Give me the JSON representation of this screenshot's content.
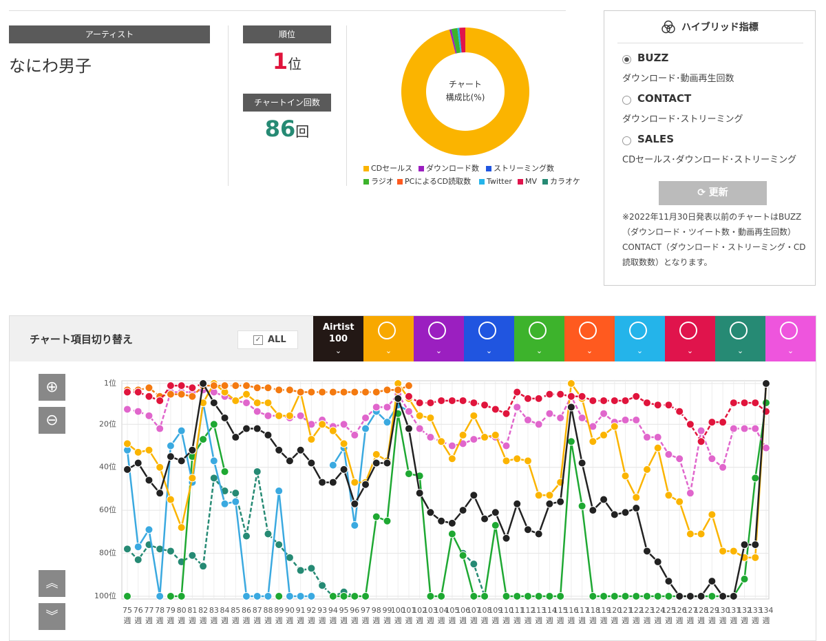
{
  "artist": {
    "header": "アーティスト",
    "name": "なにわ男子"
  },
  "rank": {
    "header": "順位",
    "value": 1,
    "unit": "位"
  },
  "chart_in": {
    "header": "チャートイン回数",
    "value": 86,
    "unit": "回"
  },
  "hybrid": {
    "title": "ハイブリッド指標",
    "options": [
      {
        "name": "BUZZ",
        "description": "ダウンロード･動画再生回数",
        "selected": true
      },
      {
        "name": "CONTACT",
        "description": "ダウンロード･ストリーミング",
        "selected": false
      },
      {
        "name": "SALES",
        "description": "CDセールス･ダウンロード･ストリーミング",
        "selected": false
      }
    ],
    "button": "更新",
    "note": "※2022年11月30日発表以前のチャートはBUZZ（ダウンロード・ツイート数・動画再生回数）CONTACT（ダウンロード・ストリーミング・CD読取数数）となります。"
  },
  "toolbar": {
    "title": "チャート項目切り替え",
    "all": "ALL",
    "all_checked": true,
    "tabs": [
      {
        "label": "Airtist 100",
        "color": "#231815"
      },
      {
        "color": "#f8a800"
      },
      {
        "color": "#9b1fc0"
      },
      {
        "color": "#2055e0"
      },
      {
        "color": "#3db32c"
      },
      {
        "color": "#ff5a1f"
      },
      {
        "color": "#24b4ea"
      },
      {
        "color": "#e0144c"
      },
      {
        "color": "#268a74"
      },
      {
        "color": "#ee55dd"
      }
    ]
  },
  "chart_data": [
    {
      "type": "pie",
      "center_label": [
        "チャート",
        "構成比(%)"
      ],
      "categories": [
        "CDセールス",
        "ダウンロード数",
        "ストリーミング数",
        "ラジオ",
        "PCによるCD読取数",
        "Twitter",
        "MV",
        "カラオケ"
      ],
      "values": [
        96,
        0.5,
        0,
        1.5,
        0,
        0.5,
        1.5,
        0
      ],
      "colors": [
        "#fbb400",
        "#9b1fc0",
        "#2055e0",
        "#3db32c",
        "#ff5a1f",
        "#24b4ea",
        "#e0144c",
        "#268a74"
      ]
    },
    {
      "type": "line",
      "x_unit": "週",
      "inverted_y": true,
      "grid": true,
      "categories": [
        "75",
        "76",
        "77",
        "78",
        "79",
        "80",
        "81",
        "82",
        "83",
        "84",
        "85",
        "86",
        "87",
        "88",
        "89",
        "90",
        "91",
        "92",
        "93",
        "94",
        "95",
        "96",
        "97",
        "98",
        "99",
        "100",
        "101",
        "102",
        "103",
        "104",
        "105",
        "106",
        "107",
        "108",
        "109",
        "110",
        "111",
        "112",
        "113",
        "114",
        "115",
        "116",
        "117",
        "118",
        "119",
        "120",
        "121",
        "122",
        "123",
        "124",
        "125",
        "126",
        "127",
        "128",
        "129",
        "130",
        "131",
        "132",
        "133",
        "134"
      ],
      "ylim": [
        1,
        100
      ],
      "yticks": [
        {
          "value": 1,
          "label": "1位"
        },
        {
          "value": 20,
          "label": "20位"
        },
        {
          "value": 40,
          "label": "40位"
        },
        {
          "value": 60,
          "label": "60位"
        },
        {
          "value": 80,
          "label": "80位"
        },
        {
          "value": 100,
          "label": "100位"
        }
      ],
      "series": [
        {
          "color": "#268a74",
          "dashed": true,
          "values": [
            78,
            83,
            76,
            78,
            79,
            84,
            81,
            86,
            45,
            51,
            52,
            72,
            42,
            71,
            76,
            82,
            88,
            87,
            95,
            100,
            98,
            100,
            null,
            null,
            null,
            null,
            null,
            null,
            null,
            null,
            null,
            80,
            85,
            100,
            null,
            null,
            null,
            null,
            null,
            null,
            null,
            null,
            null,
            null,
            null,
            null,
            null,
            null,
            null,
            null,
            null,
            null,
            null,
            null,
            null,
            null,
            null,
            null,
            null,
            null
          ]
        },
        {
          "color": "#1ea832",
          "dashed": false,
          "values": [
            100,
            null,
            null,
            null,
            100,
            100,
            35,
            27,
            20,
            42,
            null,
            null,
            null,
            null,
            100,
            null,
            null,
            null,
            null,
            100,
            100,
            100,
            100,
            63,
            65,
            15,
            43,
            44,
            100,
            100,
            71,
            81,
            100,
            100,
            67,
            100,
            100,
            100,
            100,
            100,
            100,
            28,
            58,
            100,
            100,
            100,
            100,
            100,
            100,
            100,
            100,
            100,
            100,
            100,
            100,
            100,
            100,
            92,
            45,
            10
          ]
        },
        {
          "color": "#3aa9e0",
          "dashed": false,
          "values": [
            32,
            77,
            69,
            100,
            30,
            23,
            47,
            10,
            37,
            57,
            56,
            100,
            100,
            100,
            51,
            100,
            100,
            100,
            null,
            39,
            31,
            67,
            22,
            14,
            19,
            11,
            14,
            null,
            null,
            null,
            null,
            null,
            null,
            null,
            null,
            null,
            null,
            null,
            null,
            null,
            null,
            null,
            null,
            null,
            null,
            null,
            null,
            null,
            null,
            null,
            null,
            null,
            null,
            null,
            null,
            null,
            null,
            null,
            null,
            null
          ]
        },
        {
          "color": "#e066cc",
          "dashed": true,
          "values": [
            13,
            14,
            16,
            22,
            5,
            5,
            5,
            4,
            5,
            7,
            9,
            10,
            14,
            16,
            16,
            17,
            16,
            20,
            18,
            21,
            20,
            25,
            17,
            12,
            12,
            6,
            14,
            22,
            26,
            28,
            30,
            29,
            27,
            26,
            26,
            30,
            12,
            18,
            20,
            15,
            17,
            7,
            17,
            21,
            15,
            19,
            18,
            18,
            26,
            26,
            34,
            36,
            52,
            23,
            36,
            40,
            22,
            22,
            22,
            31
          ]
        },
        {
          "color": "#fbb400",
          "dashed": false,
          "values": [
            29,
            33,
            32,
            40,
            55,
            68,
            45,
            10,
            1,
            5,
            9,
            6,
            10,
            10,
            16,
            16,
            5,
            27,
            20,
            23,
            29,
            47,
            47,
            34,
            37,
            1,
            8,
            16,
            17,
            28,
            36,
            25,
            16,
            26,
            25,
            37,
            36,
            37,
            53,
            53,
            47,
            1,
            8,
            28,
            25,
            21,
            44,
            54,
            41,
            31,
            53,
            56,
            71,
            71,
            62,
            79,
            79,
            82,
            82,
            1
          ]
        },
        {
          "color": "#f47a10",
          "dashed": true,
          "values": [
            4,
            4,
            3,
            7,
            6,
            6,
            7,
            2,
            2,
            2,
            2,
            2,
            3,
            3,
            4,
            4,
            5,
            5,
            5,
            5,
            5,
            5,
            5,
            5,
            4,
            4,
            2,
            null,
            null,
            null,
            null,
            null,
            null,
            null,
            null,
            null,
            null,
            null,
            null,
            null,
            null,
            null,
            null,
            null,
            null,
            null,
            null,
            null,
            null,
            null,
            null,
            null,
            null,
            null,
            null,
            null,
            null,
            null,
            null,
            null
          ]
        },
        {
          "color": "#e0143c",
          "dashed": true,
          "values": [
            5,
            5,
            7,
            9,
            2,
            2,
            3,
            1,
            null,
            null,
            null,
            null,
            null,
            null,
            null,
            null,
            null,
            null,
            null,
            null,
            null,
            null,
            null,
            null,
            null,
            null,
            7,
            10,
            10,
            9,
            9,
            9,
            10,
            11,
            13,
            15,
            5,
            8,
            8,
            6,
            6,
            7,
            7,
            9,
            9,
            9,
            9,
            7,
            10,
            11,
            11,
            14,
            20,
            28,
            19,
            19,
            10,
            10,
            10,
            14
          ]
        },
        {
          "color": "#222222",
          "dashed": false,
          "values": [
            41,
            38,
            46,
            52,
            35,
            37,
            32,
            1,
            10,
            17,
            26,
            22,
            22,
            25,
            32,
            37,
            32,
            38,
            47,
            47,
            41,
            57,
            48,
            38,
            38,
            8,
            22,
            52,
            61,
            65,
            66,
            60,
            53,
            64,
            61,
            73,
            57,
            69,
            71,
            57,
            56,
            12,
            38,
            60,
            55,
            62,
            61,
            59,
            79,
            84,
            93,
            100,
            100,
            100,
            93,
            100,
            100,
            76,
            76,
            1
          ]
        }
      ]
    }
  ]
}
